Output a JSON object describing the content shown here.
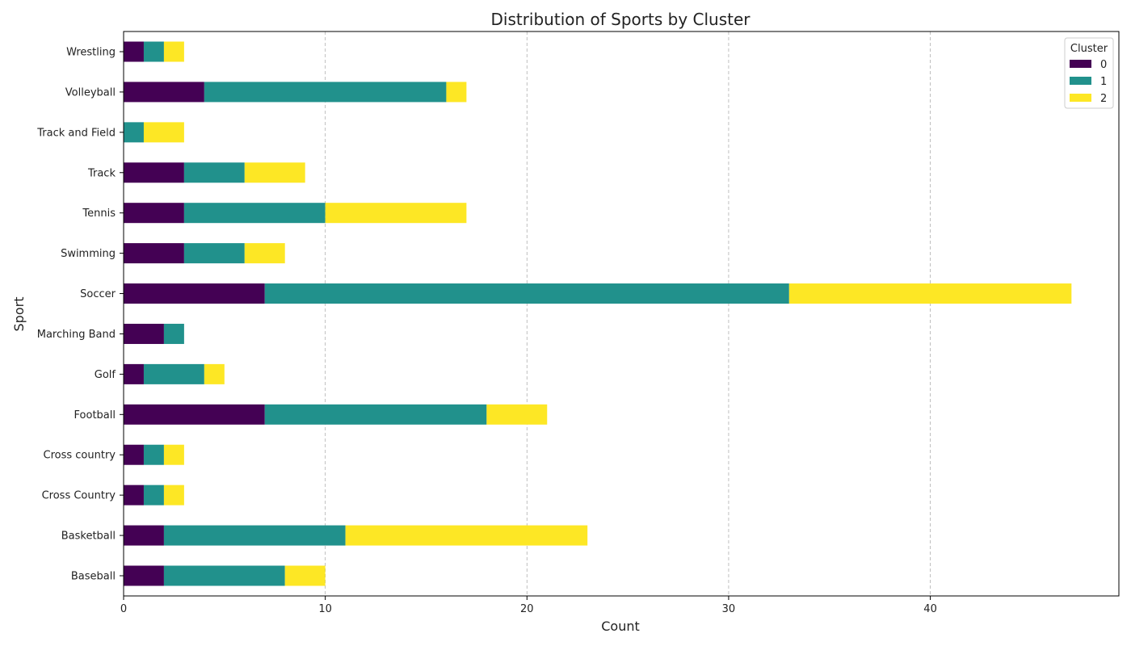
{
  "chart_data": {
    "type": "bar",
    "orientation": "horizontal",
    "stacked": true,
    "title": "Distribution of Sports by Cluster",
    "xlabel": "Count",
    "ylabel": "Sport",
    "xlim": [
      0,
      49.35
    ],
    "xticks": [
      0,
      10,
      20,
      30,
      40
    ],
    "grid": "x-dashed",
    "legend": {
      "title": "Cluster",
      "placement": "top-right"
    },
    "categories": [
      "Baseball",
      "Basketball",
      "Cross Country",
      "Cross country",
      "Football",
      "Golf",
      "Marching Band",
      "Soccer",
      "Swimming",
      "Tennis",
      "Track",
      "Track and Field",
      "Volleyball",
      "Wrestling"
    ],
    "series": [
      {
        "name": "0",
        "color": "#440154",
        "values": [
          2,
          2,
          1,
          1,
          7,
          1,
          2,
          7,
          3,
          3,
          3,
          0,
          4,
          1
        ]
      },
      {
        "name": "1",
        "color": "#21918c",
        "values": [
          6,
          9,
          1,
          1,
          11,
          3,
          1,
          26,
          3,
          7,
          3,
          1,
          12,
          1
        ]
      },
      {
        "name": "2",
        "color": "#fde725",
        "values": [
          2,
          12,
          1,
          1,
          3,
          1,
          0,
          14,
          2,
          7,
          3,
          2,
          1,
          1
        ]
      }
    ]
  }
}
